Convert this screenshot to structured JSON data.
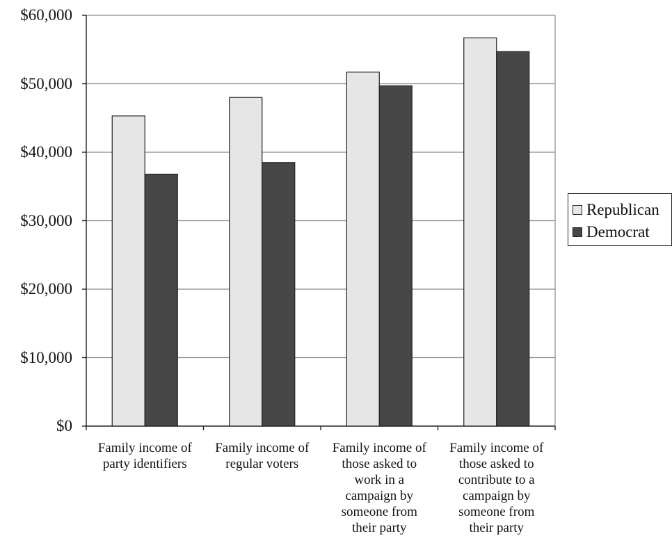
{
  "chart_data": {
    "type": "bar",
    "categories": [
      "Family income of party identifiers",
      "Family income of regular voters",
      "Family income of those asked to work in a campaign by someone from their party",
      "Family income of those asked to contribute to a campaign by someone from their party"
    ],
    "category_lines": [
      [
        "Family income of",
        "party identifiers"
      ],
      [
        "Family income of",
        "regular voters"
      ],
      [
        "Family income of",
        "those asked to",
        "work in a",
        "campaign by",
        "someone from",
        "their party"
      ],
      [
        "Family income of",
        "those asked to",
        "contribute to a",
        "campaign by",
        "someone from",
        "their party"
      ]
    ],
    "series": [
      {
        "name": "Republican",
        "color": "#e6e6e6",
        "values": [
          45300,
          48000,
          51700,
          56700
        ]
      },
      {
        "name": "Democrat",
        "color": "#474747",
        "values": [
          36800,
          38500,
          49700,
          54700
        ]
      }
    ],
    "ylim": [
      0,
      60000
    ],
    "yticks": [
      0,
      10000,
      20000,
      30000,
      40000,
      50000,
      60000
    ],
    "ytick_labels": [
      "$0",
      "$10,000",
      "$20,000",
      "$30,000",
      "$40,000",
      "$50,000",
      "$60,000"
    ],
    "grid": true,
    "legend_position": "right"
  }
}
